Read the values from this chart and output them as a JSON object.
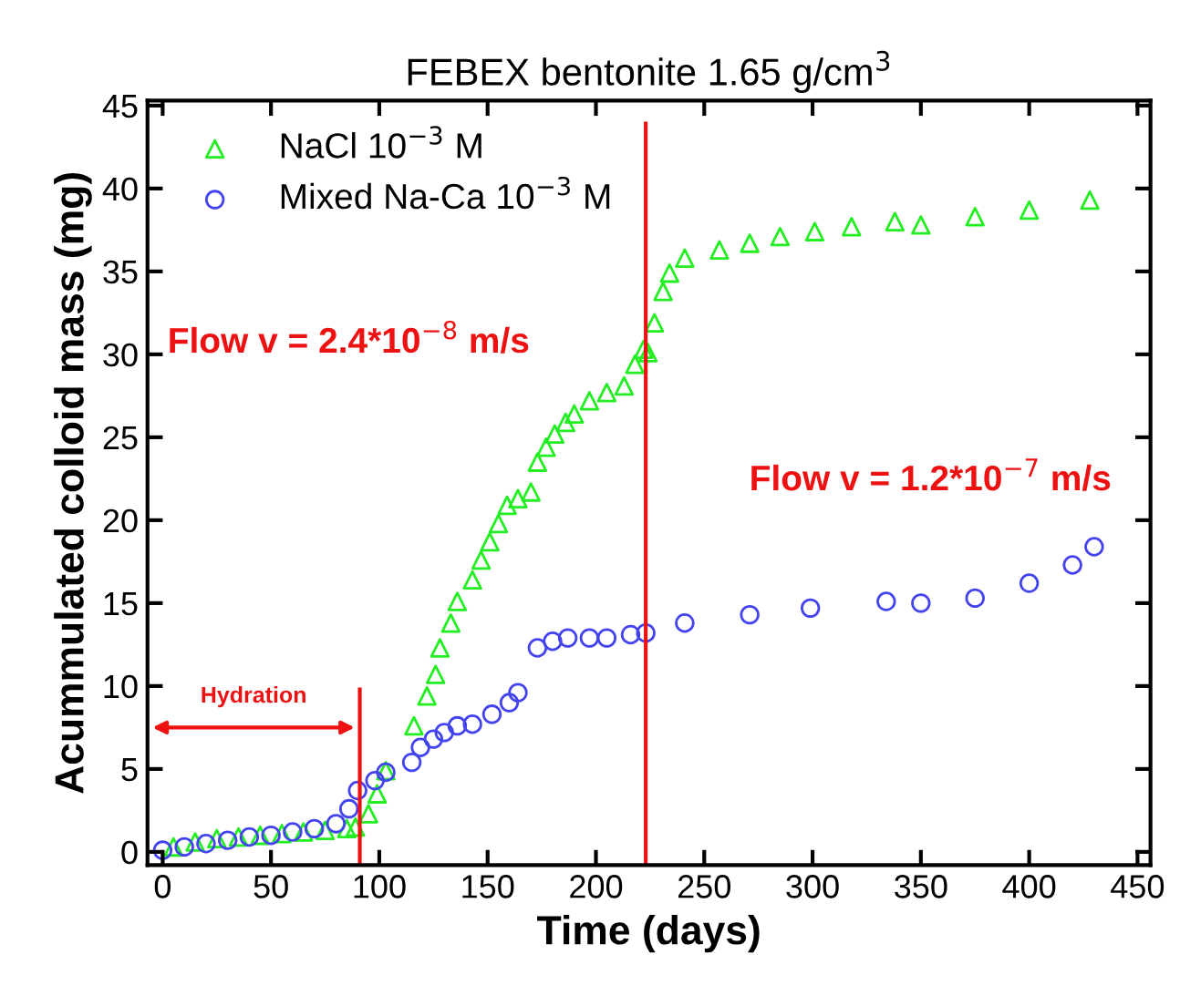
{
  "chart_data": {
    "type": "scatter",
    "title": "FEBEX bentonite 1.65 g/cm$^{3}$",
    "xlabel": "Time (days)",
    "ylabel": "Acummulated colloid mass (mg)",
    "xlim": [
      -7,
      456
    ],
    "ylim": [
      -0.8,
      45.3
    ],
    "xticks": [
      0,
      50,
      100,
      150,
      200,
      250,
      300,
      350,
      400,
      450
    ],
    "yticks": [
      0,
      5,
      10,
      15,
      20,
      25,
      30,
      35,
      40,
      45
    ],
    "grid": false,
    "legend": "top left",
    "series": [
      {
        "name": "NaCl 10$^{−3}$ M",
        "color": "#22ee22",
        "marker": "triangle",
        "x": [
          5,
          15,
          25,
          35,
          45,
          55,
          65,
          75,
          85,
          89,
          95,
          99,
          103,
          116,
          122,
          126,
          128,
          133,
          136,
          143,
          147,
          151,
          155,
          159,
          164,
          170,
          173,
          177,
          181,
          186,
          190,
          197,
          205,
          213,
          218,
          222,
          224,
          227,
          231,
          234,
          241,
          257,
          271,
          285,
          301,
          318,
          338,
          350,
          375,
          400,
          428
        ],
        "values": [
          0.3,
          0.6,
          0.8,
          0.9,
          1.0,
          1.1,
          1.2,
          1.3,
          1.4,
          1.5,
          2.3,
          3.5,
          4.9,
          7.6,
          9.4,
          10.7,
          12.3,
          13.8,
          15.1,
          16.4,
          17.6,
          18.7,
          19.8,
          20.9,
          21.3,
          21.7,
          23.5,
          24.4,
          25.2,
          25.9,
          26.4,
          27.2,
          27.7,
          28.1,
          29.4,
          30.3,
          30.1,
          31.9,
          33.8,
          34.9,
          35.8,
          36.3,
          36.7,
          37.1,
          37.4,
          37.7,
          38.0,
          37.8,
          38.3,
          38.7,
          39.3
        ]
      },
      {
        "name": "Mixed Na-Ca 10$^{−3}$ M",
        "color": "#4444ee",
        "marker": "circle",
        "x": [
          0,
          10,
          20,
          30,
          40,
          50,
          60,
          70,
          80,
          86,
          90,
          98,
          103,
          115,
          119,
          125,
          130,
          136,
          143,
          152,
          160,
          164,
          173,
          180,
          187,
          197,
          205,
          216,
          223,
          241,
          271,
          299,
          334,
          350,
          375,
          400,
          420,
          430
        ],
        "values": [
          0.1,
          0.3,
          0.5,
          0.7,
          0.9,
          1.0,
          1.2,
          1.4,
          1.7,
          2.6,
          3.7,
          4.3,
          4.8,
          5.4,
          6.3,
          6.8,
          7.2,
          7.6,
          7.7,
          8.3,
          9.0,
          9.6,
          12.3,
          12.7,
          12.9,
          12.9,
          12.9,
          13.1,
          13.2,
          13.8,
          14.3,
          14.7,
          15.1,
          15.0,
          15.3,
          16.2,
          17.3,
          18.4
        ]
      }
    ],
    "ref_lines": [
      {
        "axis": "x",
        "value": 91,
        "label": "Hydration",
        "color": "#ee1111"
      },
      {
        "axis": "x",
        "value": 223,
        "color": "#ee1111"
      }
    ],
    "annotations": [
      "Flow v = 2.4*10$^{−8}$ m/s",
      "Flow v = 1.2*10$^{−7}$ m/s"
    ]
  }
}
